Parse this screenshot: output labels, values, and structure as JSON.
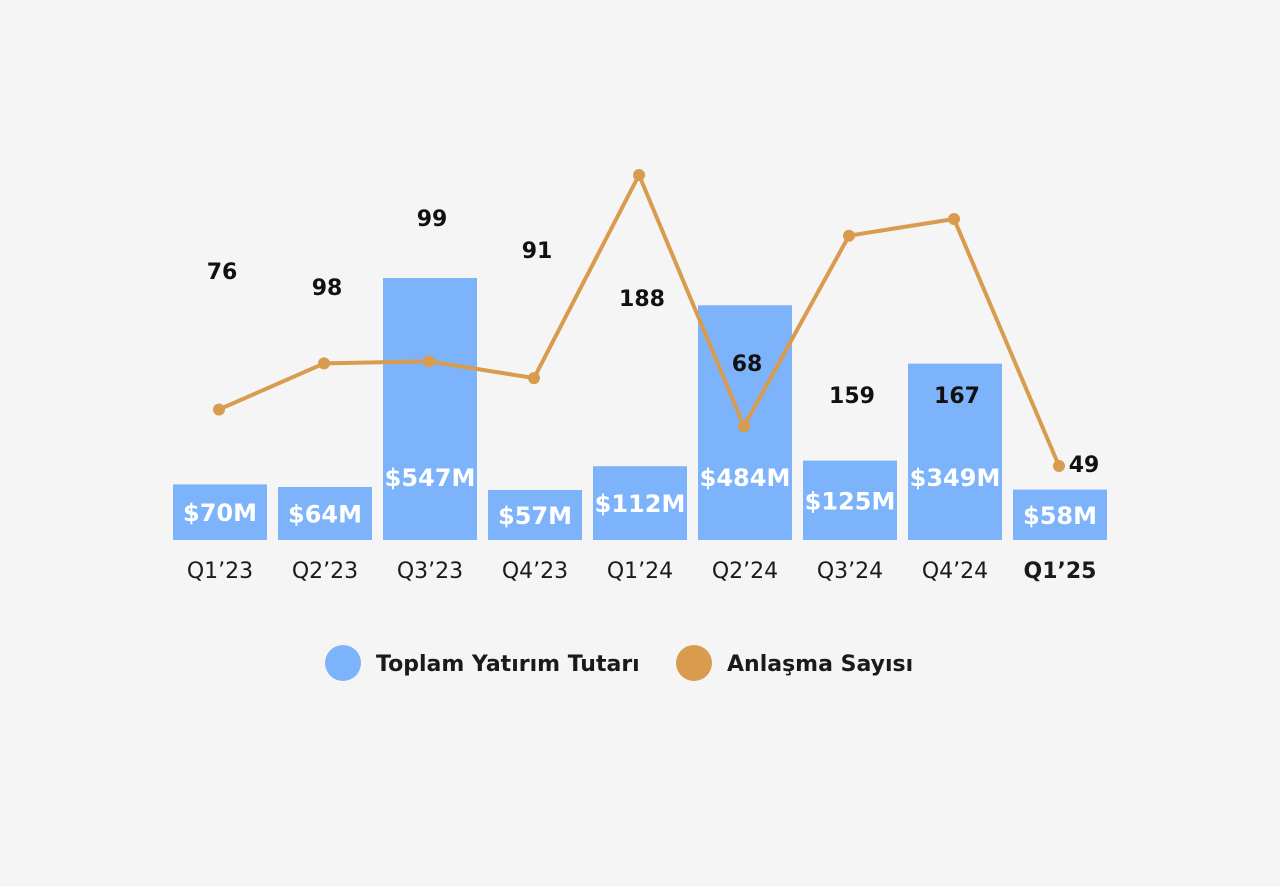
{
  "chart_data": {
    "type": "bar",
    "categories": [
      "Q1’23",
      "Q2’23",
      "Q3’23",
      "Q4’23",
      "Q1’24",
      "Q2’24",
      "Q3’24",
      "Q4’24",
      "Q1’25"
    ],
    "highlight_category": "Q1’25",
    "series": [
      {
        "name": "Toplam Yatırım Tutarı",
        "type": "bar",
        "color": "#7db3fb",
        "values": [
          70,
          64,
          547,
          57,
          112,
          484,
          125,
          349,
          58
        ],
        "labels": [
          "$70M",
          "$64M",
          "$547M",
          "$57M",
          "$112M",
          "$484M",
          "$125M",
          "$349M",
          "$58M"
        ]
      },
      {
        "name": "Anlaşma Sayısı",
        "type": "line",
        "color": "#d99b4e",
        "values": [
          76,
          98,
          99,
          91,
          188,
          68,
          159,
          167,
          49
        ]
      }
    ],
    "grid": false,
    "legend_position": "bottom"
  }
}
